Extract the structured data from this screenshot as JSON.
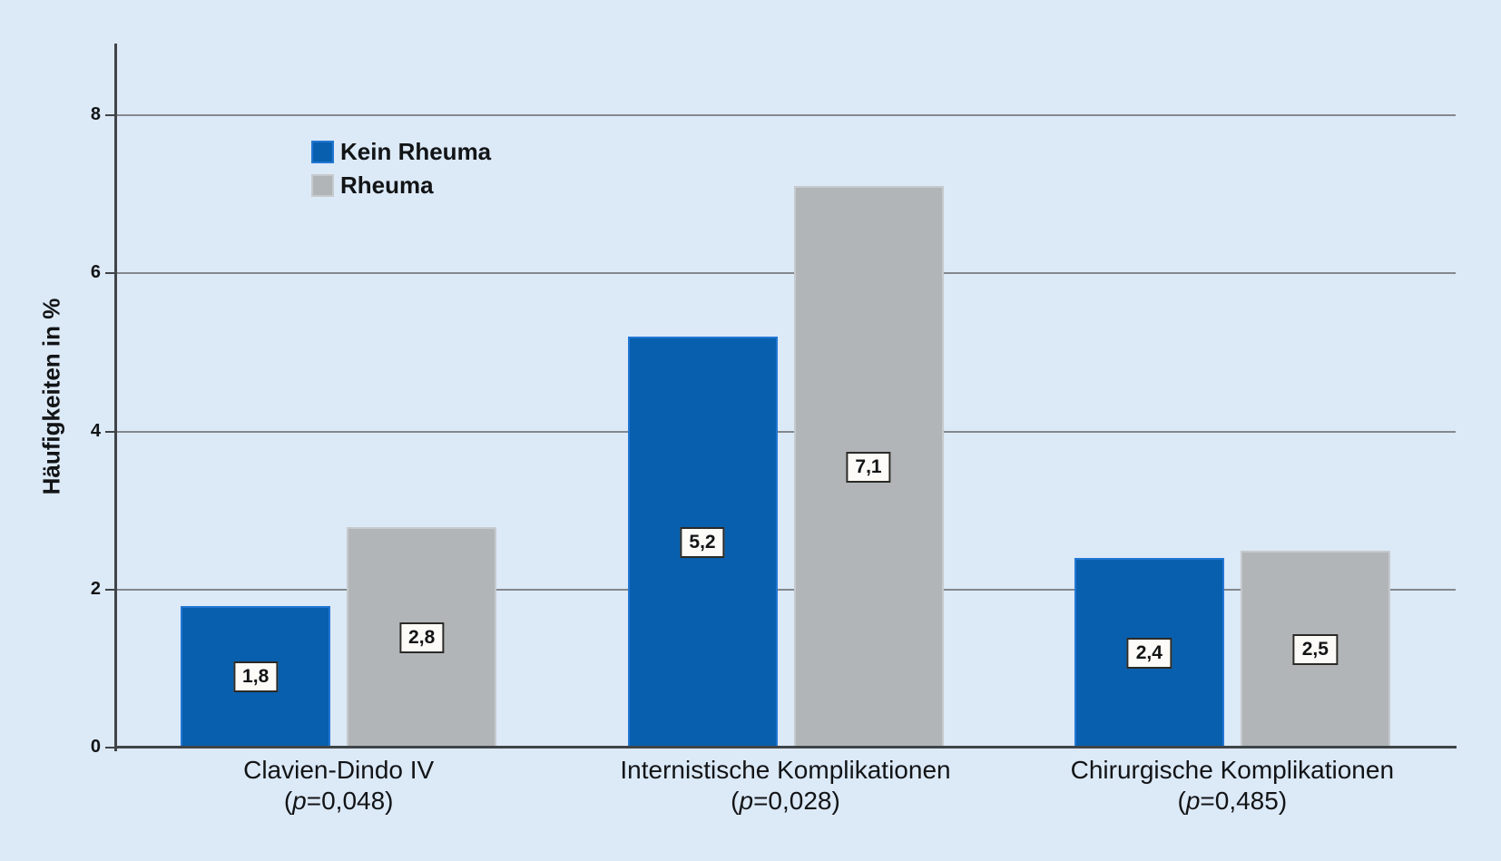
{
  "chart_data": {
    "type": "bar",
    "title": "",
    "xlabel": "",
    "ylabel": "Häufigkeiten in %",
    "ylim": [
      0,
      8.9
    ],
    "yticks": [
      0,
      2,
      4,
      6,
      8
    ],
    "ytick_labels": [
      "0",
      "2",
      "4",
      "6",
      "8"
    ],
    "grid": "horizontal gridlines at yticks, drawn behind bars",
    "legend_position": "inside-top-left",
    "categories": [
      "Clavien-Dindo IV (p=0,048)",
      "Internistische Komplikationen (p=0,028)",
      "Chirurgische Komplikationen (p=0,485)"
    ],
    "groups": [
      {
        "line1": "Clavien-Dindo IV",
        "p_label": "(p=0,048)"
      },
      {
        "line1": "Internistische Komplikationen",
        "p_label": "(p=0,028)"
      },
      {
        "line1": "Chirurgische Komplikationen",
        "p_label": "(p=0,485)"
      }
    ],
    "series": [
      {
        "name": "Kein Rheuma",
        "values": [
          1.8,
          5.2,
          2.4
        ],
        "value_labels": [
          "1,8",
          "5,2",
          "2,4"
        ],
        "fill": "#085fad",
        "border": "#2276d3"
      },
      {
        "name": "Rheuma",
        "values": [
          2.8,
          7.1,
          2.5
        ],
        "value_labels": [
          "2,8",
          "7,1",
          "2,5"
        ],
        "fill": "#b1b5b8",
        "border": "#c6cacc"
      }
    ]
  },
  "colors": {
    "background": "#dce9f7",
    "grid": "#84888c",
    "axis": "#3f4448",
    "text": "#121416",
    "value_box_bg": "#fdfbf7",
    "value_box_border": "#2b2a26"
  }
}
